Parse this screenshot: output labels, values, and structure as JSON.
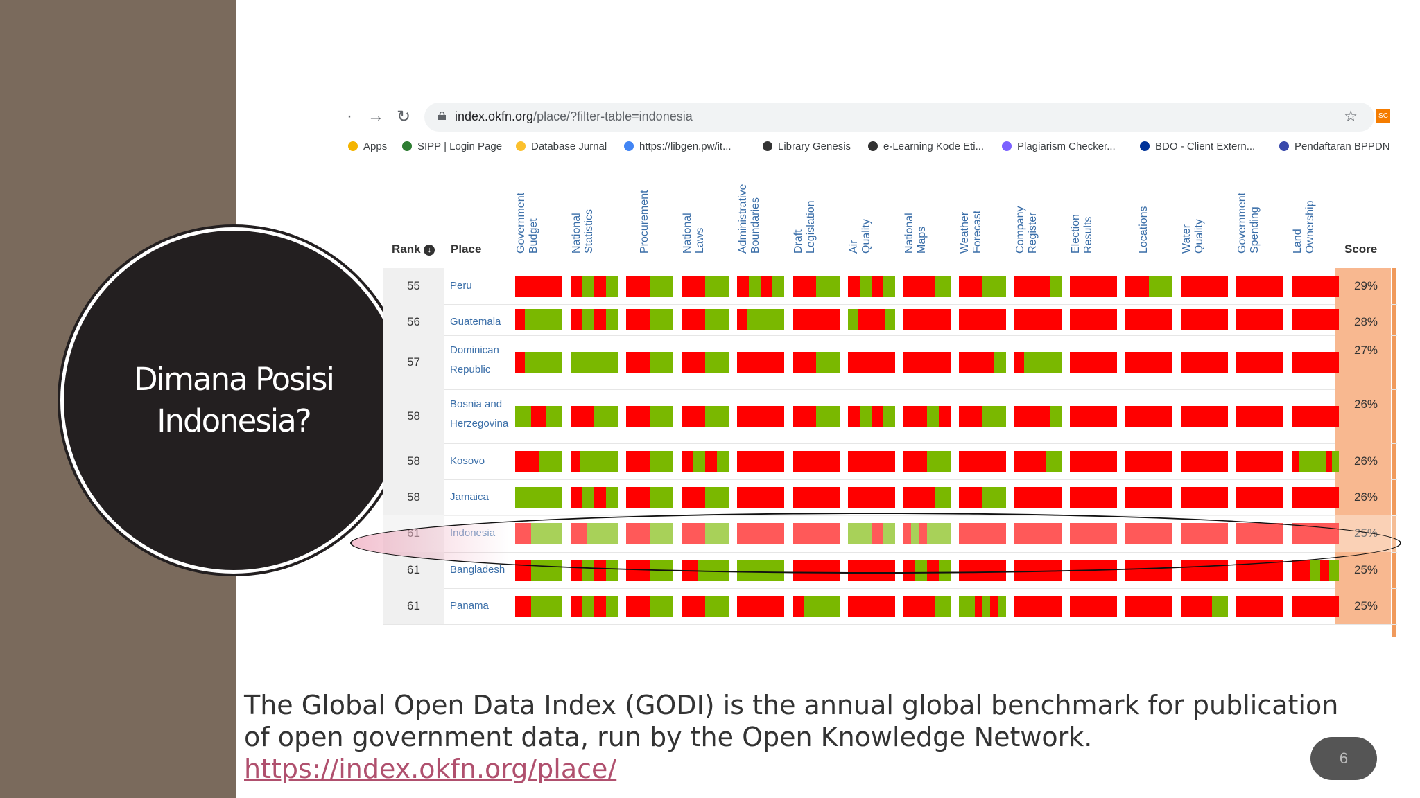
{
  "slide": {
    "title": "Dimana Posisi\nIndonesia?",
    "caption_text": "The Global Open Data Index (GODI) is the annual global benchmark for publication of open government data, run by the Open Knowledge Network. ",
    "caption_link": "https://index.okfn.org/place/",
    "page_number": "6"
  },
  "browser": {
    "url_host": "index.okfn.org",
    "url_path": "/place/?filter-table=indonesia",
    "extension_label": "SC",
    "bookmarks": [
      "Apps",
      "SIPP | Login Page",
      "Database Jurnal",
      "https://libgen.pw/it...",
      "Library Genesis",
      "e-Learning Kode Eti...",
      "Plagiarism Checker...",
      "BDO - Client Extern...",
      "Pendaftaran BPPDN"
    ]
  },
  "table": {
    "rank_header": "Rank",
    "place_header": "Place",
    "score_header": "Score",
    "columns": [
      [
        "Government",
        "Budget"
      ],
      [
        "National",
        "Statistics"
      ],
      [
        "Procurement",
        ""
      ],
      [
        "National",
        "Laws"
      ],
      [
        "Administrative",
        "Boundaries"
      ],
      [
        "Draft",
        "Legislation"
      ],
      [
        "Air",
        "Quality"
      ],
      [
        "National",
        "Maps"
      ],
      [
        "Weather",
        "Forecast"
      ],
      [
        "Company",
        "Register"
      ],
      [
        "Election",
        "Results"
      ],
      [
        "Locations",
        ""
      ],
      [
        "Water",
        "Quality"
      ],
      [
        "Government",
        "Spending"
      ],
      [
        "Land",
        "Ownership"
      ]
    ],
    "rows": [
      {
        "rank": "55",
        "place": "Peru",
        "score": "29%"
      },
      {
        "rank": "56",
        "place": "Guatemala",
        "score": "28%"
      },
      {
        "rank": "57",
        "place": "Dominican Republic",
        "score": "27%"
      },
      {
        "rank": "58",
        "place": "Bosnia and Herzegovina",
        "score": "26%"
      },
      {
        "rank": "58",
        "place": "Kosovo",
        "score": "26%"
      },
      {
        "rank": "58",
        "place": "Jamaica",
        "score": "26%"
      },
      {
        "rank": "61",
        "place": "Indonesia",
        "score": "25%"
      },
      {
        "rank": "61",
        "place": "Bangladesh",
        "score": "25%"
      },
      {
        "rank": "61",
        "place": "Panama",
        "score": "25%"
      }
    ],
    "colors": {
      "red": "#ff0000",
      "green": "#7ab800"
    }
  }
}
